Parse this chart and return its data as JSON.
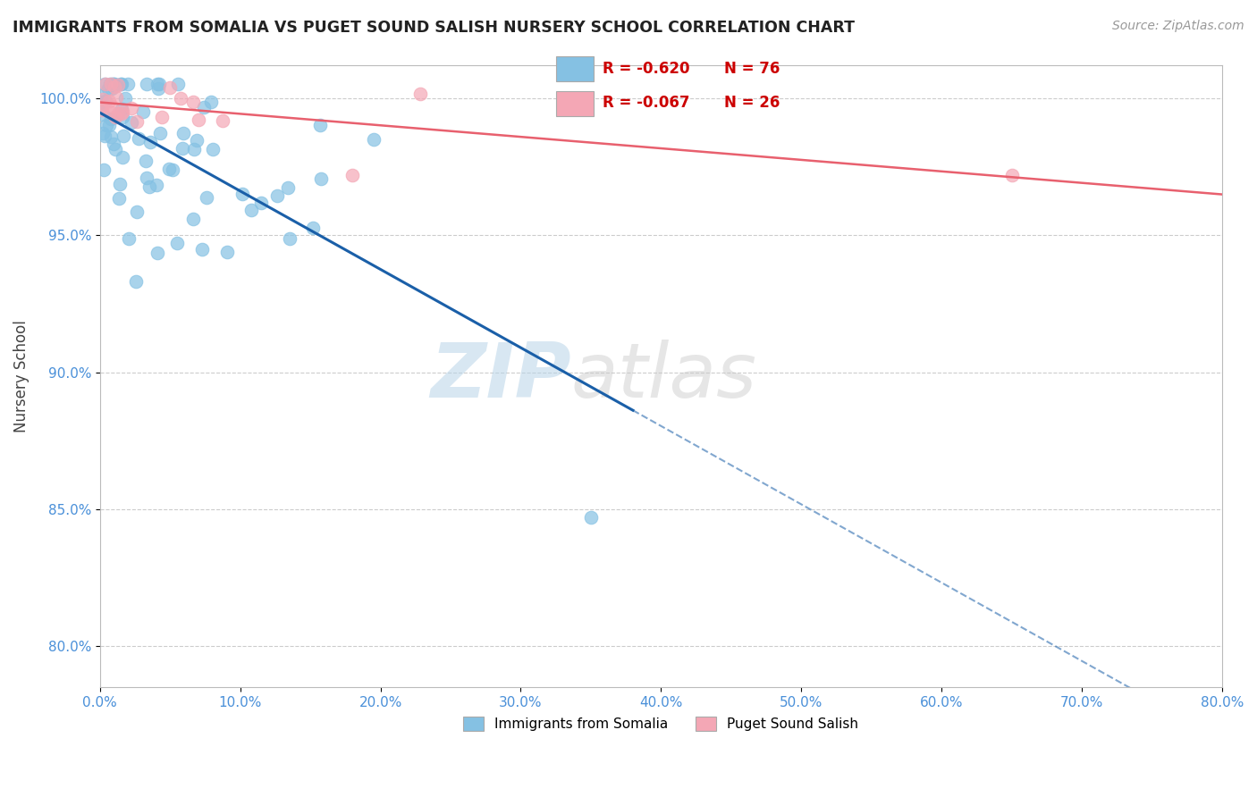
{
  "title": "IMMIGRANTS FROM SOMALIA VS PUGET SOUND SALISH NURSERY SCHOOL CORRELATION CHART",
  "source": "Source: ZipAtlas.com",
  "ylabel": "Nursery School",
  "legend_entry1_r": "R = -0.620",
  "legend_entry1_n": "N = 76",
  "legend_entry2_r": "R = -0.067",
  "legend_entry2_n": "N = 26",
  "R_blue": -0.62,
  "N_blue": 76,
  "R_pink": -0.067,
  "N_pink": 26,
  "xlim": [
    0.0,
    0.8
  ],
  "ylim": [
    0.785,
    1.012
  ],
  "yticks": [
    0.8,
    0.85,
    0.9,
    0.95,
    1.0
  ],
  "ytick_labels": [
    "80.0%",
    "85.0%",
    "90.0%",
    "95.0%",
    "100.0%"
  ],
  "xticks": [
    0.0,
    0.1,
    0.2,
    0.3,
    0.4,
    0.5,
    0.6,
    0.7,
    0.8
  ],
  "xtick_labels": [
    "0.0%",
    "10.0%",
    "20.0%",
    "30.0%",
    "40.0%",
    "50.0%",
    "60.0%",
    "70.0%",
    "80.0%"
  ],
  "blue_color": "#85c1e3",
  "pink_color": "#f4a7b5",
  "blue_line_color": "#1a5fa8",
  "pink_line_color": "#e8606e",
  "bottom_legend1": "Immigrants from Somalia",
  "bottom_legend2": "Puget Sound Salish",
  "watermark_zip": "ZIP",
  "watermark_atlas": "atlas"
}
